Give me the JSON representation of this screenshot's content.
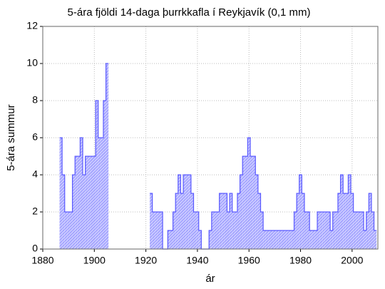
{
  "chart_data": {
    "type": "step-area",
    "title": "5-ára fjöldi 14-daga þurrkkafla í Reykjavík  (0,1 mm)",
    "x_label": "ár",
    "y_label": "5-ára summur",
    "x": [
      1887,
      1888,
      1889,
      1890,
      1891,
      1892,
      1893,
      1894,
      1895,
      1896,
      1897,
      1898,
      1899,
      1900,
      1901,
      1902,
      1903,
      1904,
      1905,
      1906,
      1907,
      1908,
      1909,
      1910,
      1911,
      1912,
      1913,
      1914,
      1915,
      1916,
      1917,
      1918,
      1919,
      1920,
      1921,
      1922,
      1923,
      1924,
      1925,
      1926,
      1927,
      1928,
      1929,
      1930,
      1931,
      1932,
      1933,
      1934,
      1935,
      1936,
      1937,
      1938,
      1939,
      1940,
      1941,
      1942,
      1943,
      1944,
      1945,
      1946,
      1947,
      1948,
      1949,
      1950,
      1951,
      1952,
      1953,
      1954,
      1955,
      1956,
      1957,
      1958,
      1959,
      1960,
      1961,
      1962,
      1963,
      1964,
      1965,
      1966,
      1967,
      1968,
      1969,
      1970,
      1971,
      1972,
      1973,
      1974,
      1975,
      1976,
      1977,
      1978,
      1979,
      1980,
      1981,
      1982,
      1983,
      1984,
      1985,
      1986,
      1987,
      1988,
      1989,
      1990,
      1991,
      1992,
      1993,
      1994,
      1995,
      1996,
      1997,
      1998,
      1999,
      2000,
      2001,
      2002,
      2003,
      2004,
      2005,
      2006,
      2007,
      2008,
      2009
    ],
    "series": [
      {
        "color": "#5a5aff",
        "values": [
          6,
          4,
          2,
          2,
          2,
          4,
          5,
          5,
          6,
          4,
          5,
          5,
          5,
          5,
          8,
          6,
          6,
          8,
          10,
          null,
          null,
          null,
          null,
          null,
          null,
          null,
          null,
          null,
          null,
          null,
          null,
          null,
          null,
          null,
          null,
          3,
          2,
          2,
          2,
          2,
          0,
          0,
          1,
          1,
          2,
          3,
          4,
          3,
          4,
          4,
          4,
          3,
          2,
          2,
          1,
          0,
          0,
          0,
          1,
          2,
          2,
          2,
          3,
          3,
          3,
          2,
          3,
          2,
          2,
          3,
          4,
          5,
          5,
          6,
          5,
          5,
          4,
          3,
          2,
          1,
          1,
          1,
          1,
          1,
          1,
          1,
          1,
          1,
          1,
          1,
          1,
          2,
          3,
          4,
          3,
          2,
          2,
          1,
          1,
          1,
          2,
          2,
          2,
          2,
          2,
          1,
          2,
          2,
          3,
          4,
          3,
          3,
          4,
          3,
          2,
          2,
          2,
          2,
          1,
          2,
          3,
          2,
          1
        ]
      }
    ],
    "xlim": [
      1880,
      2010
    ],
    "xticks": [
      1880,
      1900,
      1920,
      1940,
      1960,
      1980,
      2000
    ],
    "ylim": [
      0,
      12
    ],
    "yticks": [
      0,
      2,
      4,
      6,
      8,
      10,
      12
    ],
    "grid": true
  }
}
